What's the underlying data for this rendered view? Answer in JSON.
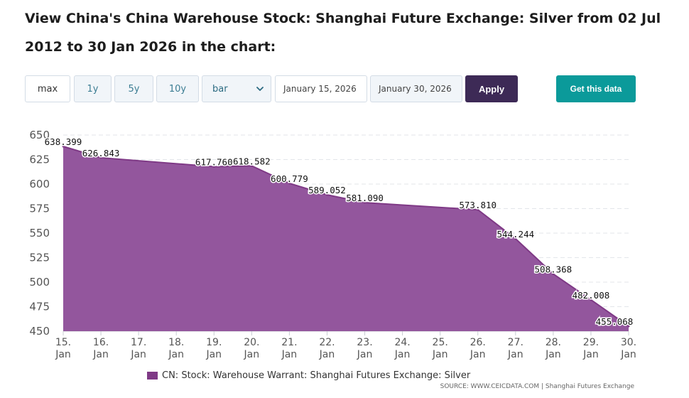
{
  "page_title": "View China's China Warehouse Stock: Shanghai Future Exchange: Silver from 02 Jul 2012 to 30 Jan 2026 in the chart:",
  "controls": {
    "ranges": [
      "max",
      "1y",
      "5y",
      "10y"
    ],
    "chart_type": "bar",
    "start_date": "January 15, 2026",
    "end_date": "January 30, 2026",
    "apply_label": "Apply",
    "get_data_label": "Get this data"
  },
  "colors": {
    "area_fill": "#93569d",
    "area_stroke": "#7f3a86",
    "apply_bg": "#3d2a56",
    "get_data_bg": "#0b9a9a"
  },
  "chart_data": {
    "type": "area",
    "categories": [
      "15. Jan",
      "16. Jan",
      "17. Jan",
      "18. Jan",
      "19. Jan",
      "20. Jan",
      "21. Jan",
      "22. Jan",
      "23. Jan",
      "24. Jan",
      "25. Jan",
      "26. Jan",
      "27. Jan",
      "28. Jan",
      "29. Jan",
      "30. Jan"
    ],
    "x_ticks": [
      [
        "15.",
        "Jan"
      ],
      [
        "16.",
        "Jan"
      ],
      [
        "17.",
        "Jan"
      ],
      [
        "18.",
        "Jan"
      ],
      [
        "19.",
        "Jan"
      ],
      [
        "20.",
        "Jan"
      ],
      [
        "21.",
        "Jan"
      ],
      [
        "22.",
        "Jan"
      ],
      [
        "23.",
        "Jan"
      ],
      [
        "24.",
        "Jan"
      ],
      [
        "25.",
        "Jan"
      ],
      [
        "26.",
        "Jan"
      ],
      [
        "27.",
        "Jan"
      ],
      [
        "28.",
        "Jan"
      ],
      [
        "29.",
        "Jan"
      ],
      [
        "30.",
        "Jan"
      ]
    ],
    "y_ticks": [
      450,
      475,
      500,
      525,
      550,
      575,
      600,
      625,
      650
    ],
    "ylim": [
      450,
      650
    ],
    "grid": true,
    "legend_position": "bottom-left",
    "series": [
      {
        "name": "CN: Stock: Warehouse Warrant: Shanghai Futures Exchange: Silver",
        "points": [
          {
            "x": "15. Jan",
            "y": 638.399,
            "label": "638.399"
          },
          {
            "x": "16. Jan",
            "y": 626.843,
            "label": "626.843"
          },
          {
            "x": "19. Jan",
            "y": 617.76,
            "label": "617.760"
          },
          {
            "x": "20. Jan",
            "y": 618.582,
            "label": "618.582"
          },
          {
            "x": "21. Jan",
            "y": 600.779,
            "label": "600.779"
          },
          {
            "x": "22. Jan",
            "y": 589.052,
            "label": "589.052"
          },
          {
            "x": "23. Jan",
            "y": 581.09,
            "label": "581.090"
          },
          {
            "x": "26. Jan",
            "y": 573.81,
            "label": "573.810"
          },
          {
            "x": "27. Jan",
            "y": 544.244,
            "label": "544.244"
          },
          {
            "x": "28. Jan",
            "y": 508.368,
            "label": "508.368"
          },
          {
            "x": "29. Jan",
            "y": 482.008,
            "label": "482.008"
          },
          {
            "x": "30. Jan",
            "y": 455.068,
            "label": "455.068"
          }
        ]
      }
    ],
    "source": "SOURCE: WWW.CEICDATA.COM | Shanghai Futures Exchange"
  }
}
